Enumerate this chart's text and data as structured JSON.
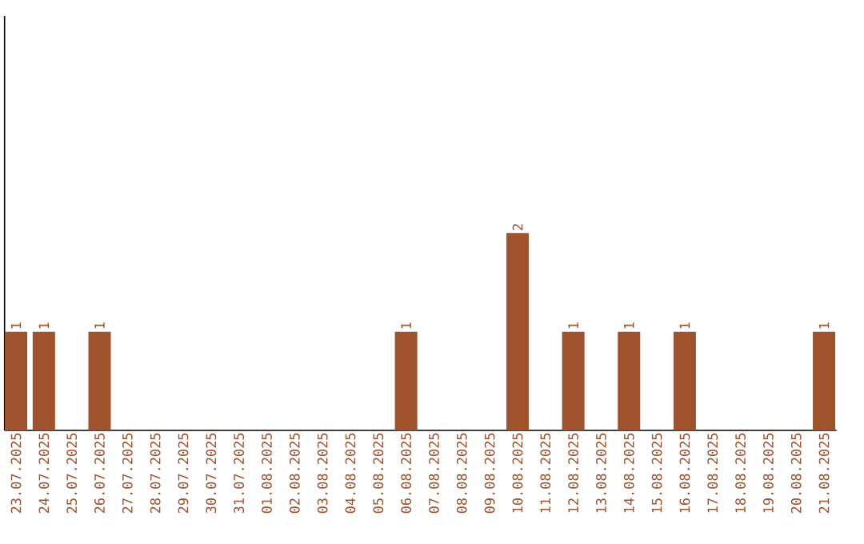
{
  "chart_data": {
    "type": "bar",
    "categories": [
      "23.07.2025",
      "24.07.2025",
      "25.07.2025",
      "26.07.2025",
      "27.07.2025",
      "28.07.2025",
      "29.07.2025",
      "30.07.2025",
      "31.07.2025",
      "01.08.2025",
      "02.08.2025",
      "03.08.2025",
      "04.08.2025",
      "05.08.2025",
      "06.08.2025",
      "07.08.2025",
      "08.08.2025",
      "09.08.2025",
      "10.08.2025",
      "11.08.2025",
      "12.08.2025",
      "13.08.2025",
      "14.08.2025",
      "15.08.2025",
      "16.08.2025",
      "17.08.2025",
      "18.08.2025",
      "19.08.2025",
      "20.08.2025",
      "21.08.2025"
    ],
    "values": [
      1,
      1,
      0,
      1,
      0,
      0,
      0,
      0,
      0,
      0,
      0,
      0,
      0,
      0,
      1,
      0,
      0,
      0,
      2,
      0,
      1,
      0,
      1,
      0,
      1,
      0,
      0,
      0,
      0,
      1
    ],
    "value_labels": [
      "1",
      "1",
      null,
      "1",
      null,
      null,
      null,
      null,
      null,
      null,
      null,
      null,
      null,
      null,
      "1",
      null,
      null,
      null,
      "2",
      null,
      "1",
      null,
      "1",
      null,
      "1",
      null,
      null,
      null,
      null,
      "1"
    ],
    "color": "#a0522d",
    "ylim": [
      0,
      4.2
    ],
    "tick_labels": "x",
    "grid": false
  }
}
